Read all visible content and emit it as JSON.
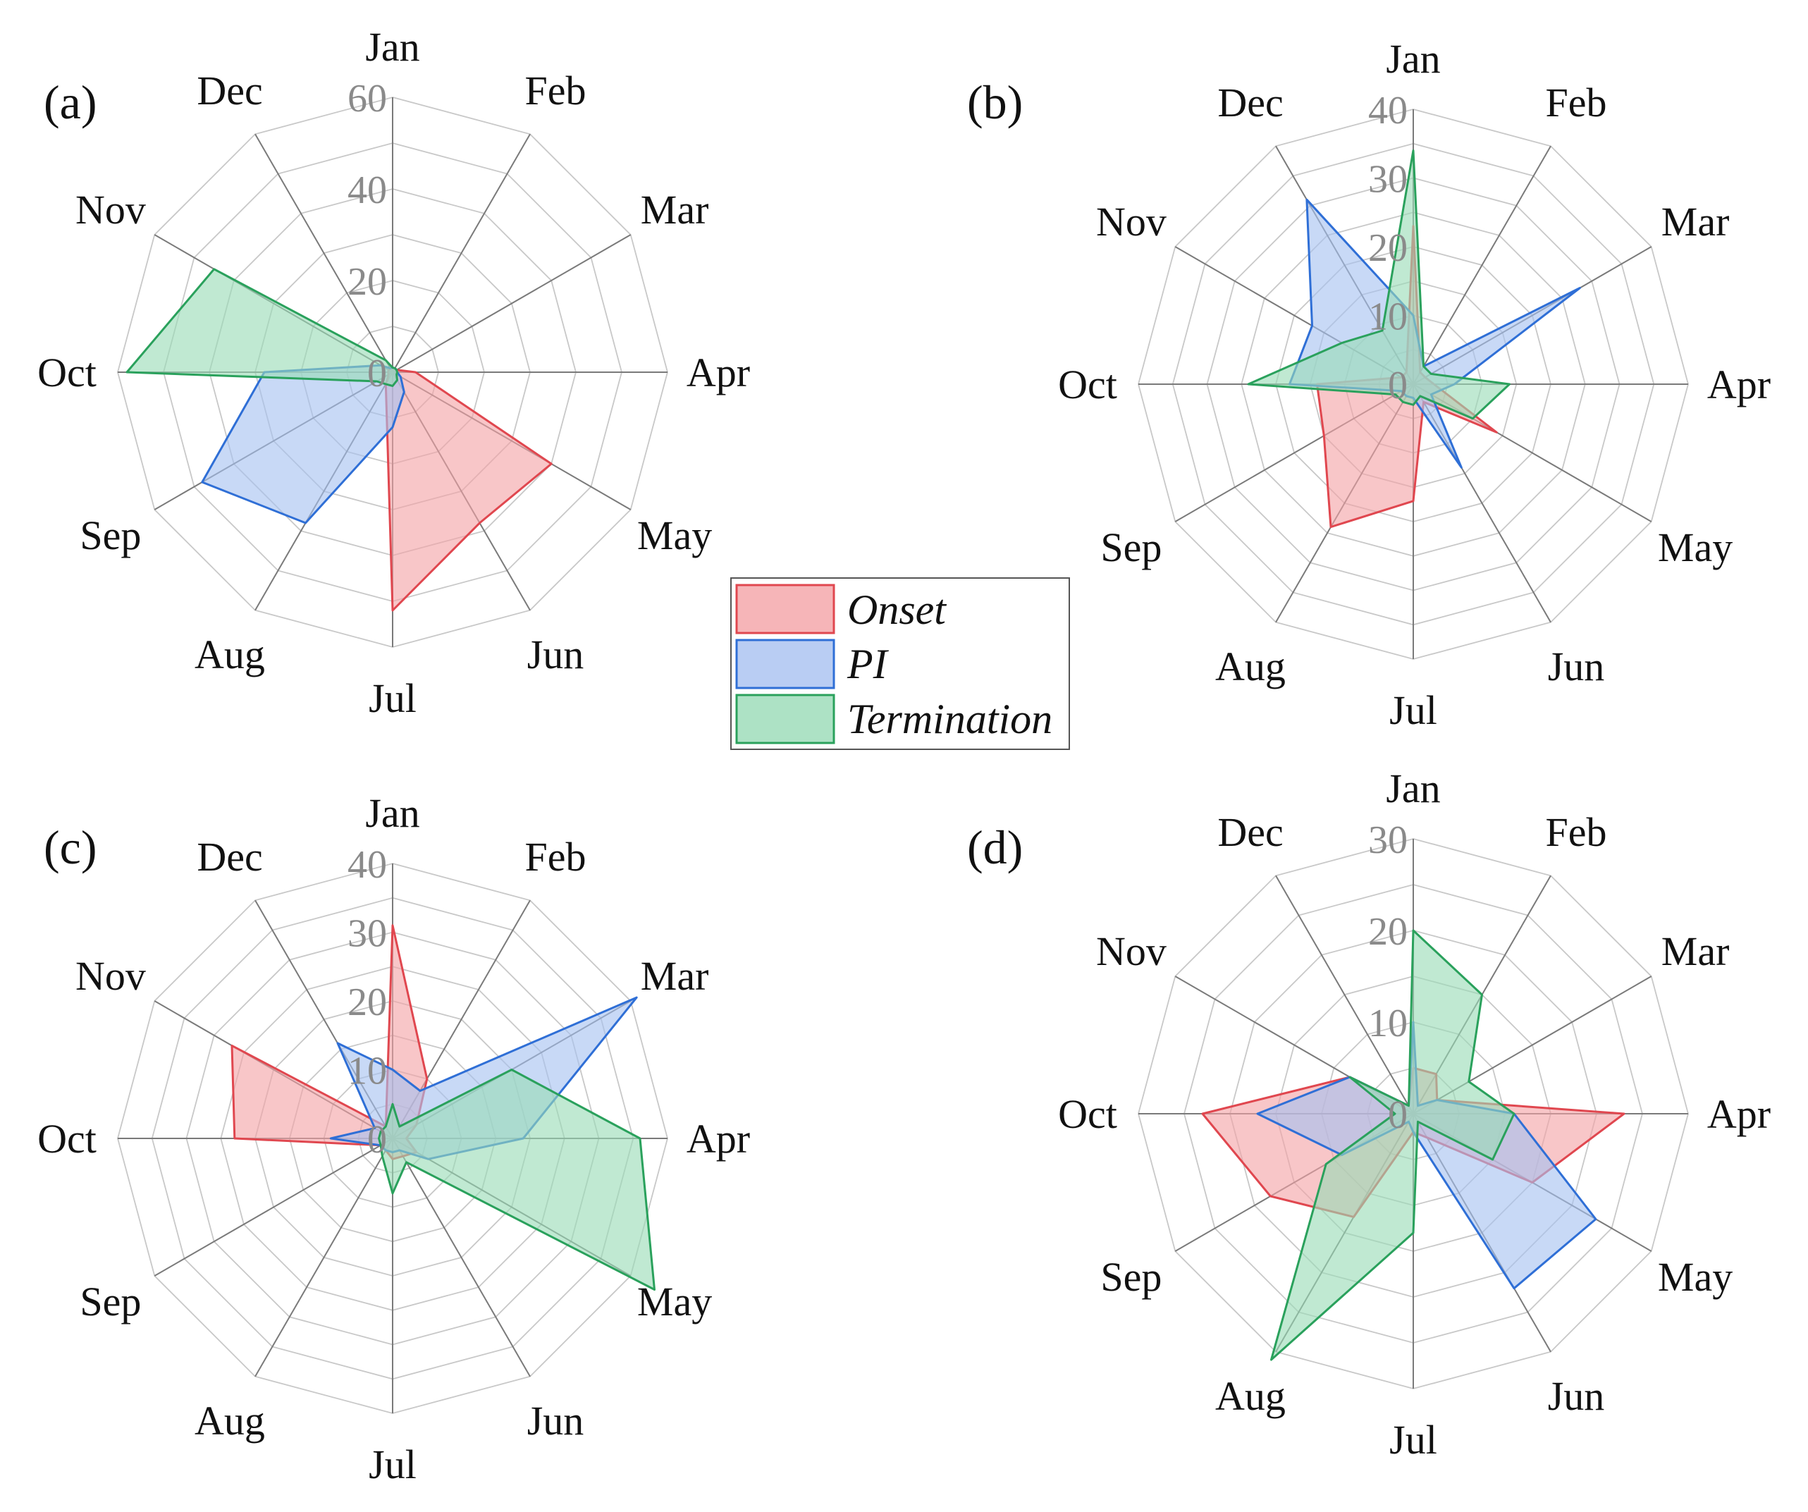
{
  "colors": {
    "onset_fill": "#f4a3a6",
    "onset_line": "#e0474f",
    "pi_fill": "#a7c1f0",
    "pi_line": "#2f6fd6",
    "termination_fill": "#99dbb6",
    "termination_line": "#2aa15c",
    "grid": "#c8c8c8",
    "spoke": "#7a7a7a"
  },
  "legend": {
    "onset": "Onset",
    "pi": "PI",
    "termination": "Termination"
  },
  "chart_data": [
    {
      "type": "radar",
      "label": "(a)",
      "categories": [
        "Jan",
        "Feb",
        "Mar",
        "Apr",
        "May",
        "Jun",
        "Jul",
        "Aug",
        "Sep",
        "Oct",
        "Nov",
        "Dec"
      ],
      "ticks": [
        "0",
        "20",
        "40",
        "60"
      ],
      "rmax": 60,
      "rings": 6,
      "series": [
        {
          "name": "Onset",
          "values": [
            1,
            1,
            1,
            5,
            40,
            38,
            52,
            3,
            1,
            1,
            1,
            1
          ]
        },
        {
          "name": "PI",
          "values": [
            1,
            1,
            1,
            1,
            2,
            5,
            12,
            38,
            48,
            28,
            3,
            1
          ]
        },
        {
          "name": "Termination",
          "values": [
            1,
            1,
            1,
            1,
            1,
            2,
            3,
            3,
            4,
            58,
            45,
            3
          ]
        }
      ]
    },
    {
      "type": "radar",
      "label": "(b)",
      "categories": [
        "Jan",
        "Feb",
        "Mar",
        "Apr",
        "May",
        "Jun",
        "Jul",
        "Aug",
        "Sep",
        "Oct",
        "Nov",
        "Dec"
      ],
      "ticks": [
        "0",
        "10",
        "20",
        "30",
        "40"
      ],
      "rmax": 40,
      "rings": 8,
      "series": [
        {
          "name": "Onset",
          "values": [
            23,
            2,
            2,
            3,
            14,
            3,
            17,
            24,
            15,
            14,
            2,
            2
          ]
        },
        {
          "name": "PI",
          "values": [
            10,
            3,
            28,
            6,
            3,
            14,
            2,
            2,
            2,
            18,
            17,
            31
          ]
        },
        {
          "name": "Termination",
          "values": [
            34,
            3,
            3,
            14,
            10,
            2,
            3,
            3,
            3,
            24,
            12,
            9
          ]
        }
      ]
    },
    {
      "type": "radar",
      "label": "(c)",
      "categories": [
        "Jan",
        "Feb",
        "Mar",
        "Apr",
        "May",
        "Jun",
        "Jul",
        "Aug",
        "Sep",
        "Oct",
        "Nov",
        "Dec"
      ],
      "ticks": [
        "0",
        "10",
        "20",
        "30",
        "40"
      ],
      "rmax": 40,
      "rings": 8,
      "series": [
        {
          "name": "Onset",
          "values": [
            31,
            10,
            4,
            2,
            4,
            3,
            3,
            2,
            2,
            23,
            27,
            2
          ]
        },
        {
          "name": "PI",
          "values": [
            10,
            8,
            41,
            19,
            6,
            2,
            2,
            2,
            2,
            9,
            3,
            16
          ]
        },
        {
          "name": "Termination",
          "values": [
            5,
            2,
            20,
            36,
            44,
            4,
            8,
            3,
            2,
            2,
            2,
            2
          ]
        }
      ]
    },
    {
      "type": "radar",
      "label": "(d)",
      "categories": [
        "Jan",
        "Feb",
        "Mar",
        "Apr",
        "May",
        "Jun",
        "Jul",
        "Aug",
        "Sep",
        "Oct",
        "Nov",
        "Dec"
      ],
      "ticks": [
        "0",
        "10",
        "20",
        "30"
      ],
      "rmax": 30,
      "rings": 6,
      "series": [
        {
          "name": "Onset",
          "values": [
            5,
            5,
            3,
            23,
            15,
            3,
            2,
            13,
            18,
            23,
            8,
            1
          ]
        },
        {
          "name": "PI",
          "values": [
            10,
            1,
            3,
            11,
            23,
            22,
            2,
            1,
            9,
            17,
            8,
            1
          ]
        },
        {
          "name": "Termination",
          "values": [
            20,
            15,
            7,
            11,
            10,
            1,
            13,
            31,
            11,
            2,
            8,
            1
          ]
        }
      ]
    }
  ]
}
